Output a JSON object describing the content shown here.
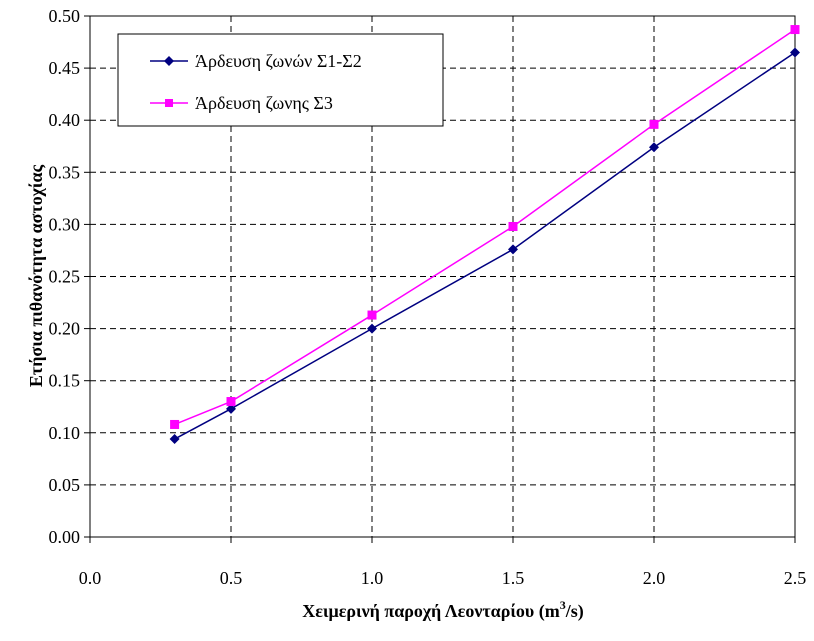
{
  "chart_data": {
    "type": "line",
    "xlabel": "Χειμερινή παροχή Λεονταρίου (m",
    "xlabel_sup": "3",
    "xlabel_tail": "/s)",
    "ylabel": "Ετήσια πιθανότητα αστοχίας",
    "xlim": [
      0.0,
      2.5
    ],
    "ylim": [
      0.0,
      0.5
    ],
    "x_ticks": [
      "0.0",
      "0.5",
      "1.0",
      "1.5",
      "2.0",
      "2.5"
    ],
    "y_ticks": [
      "0.00",
      "0.05",
      "0.10",
      "0.15",
      "0.20",
      "0.25",
      "0.30",
      "0.35",
      "0.40",
      "0.45",
      "0.50"
    ],
    "grid": true,
    "legend_position": "top-left",
    "series": [
      {
        "name": "Άρδευση ζωνών Σ1-Σ2",
        "color": "#000080",
        "marker": "diamond",
        "x": [
          0.3,
          0.5,
          1.0,
          1.5,
          2.0,
          2.5
        ],
        "y": [
          0.094,
          0.123,
          0.2,
          0.276,
          0.374,
          0.465
        ]
      },
      {
        "name": "Άρδευση ζωνης Σ3",
        "color": "#FF00FF",
        "marker": "square",
        "x": [
          0.3,
          0.5,
          1.0,
          1.5,
          2.0,
          2.5
        ],
        "y": [
          0.108,
          0.13,
          0.213,
          0.298,
          0.396,
          0.487
        ]
      }
    ]
  }
}
